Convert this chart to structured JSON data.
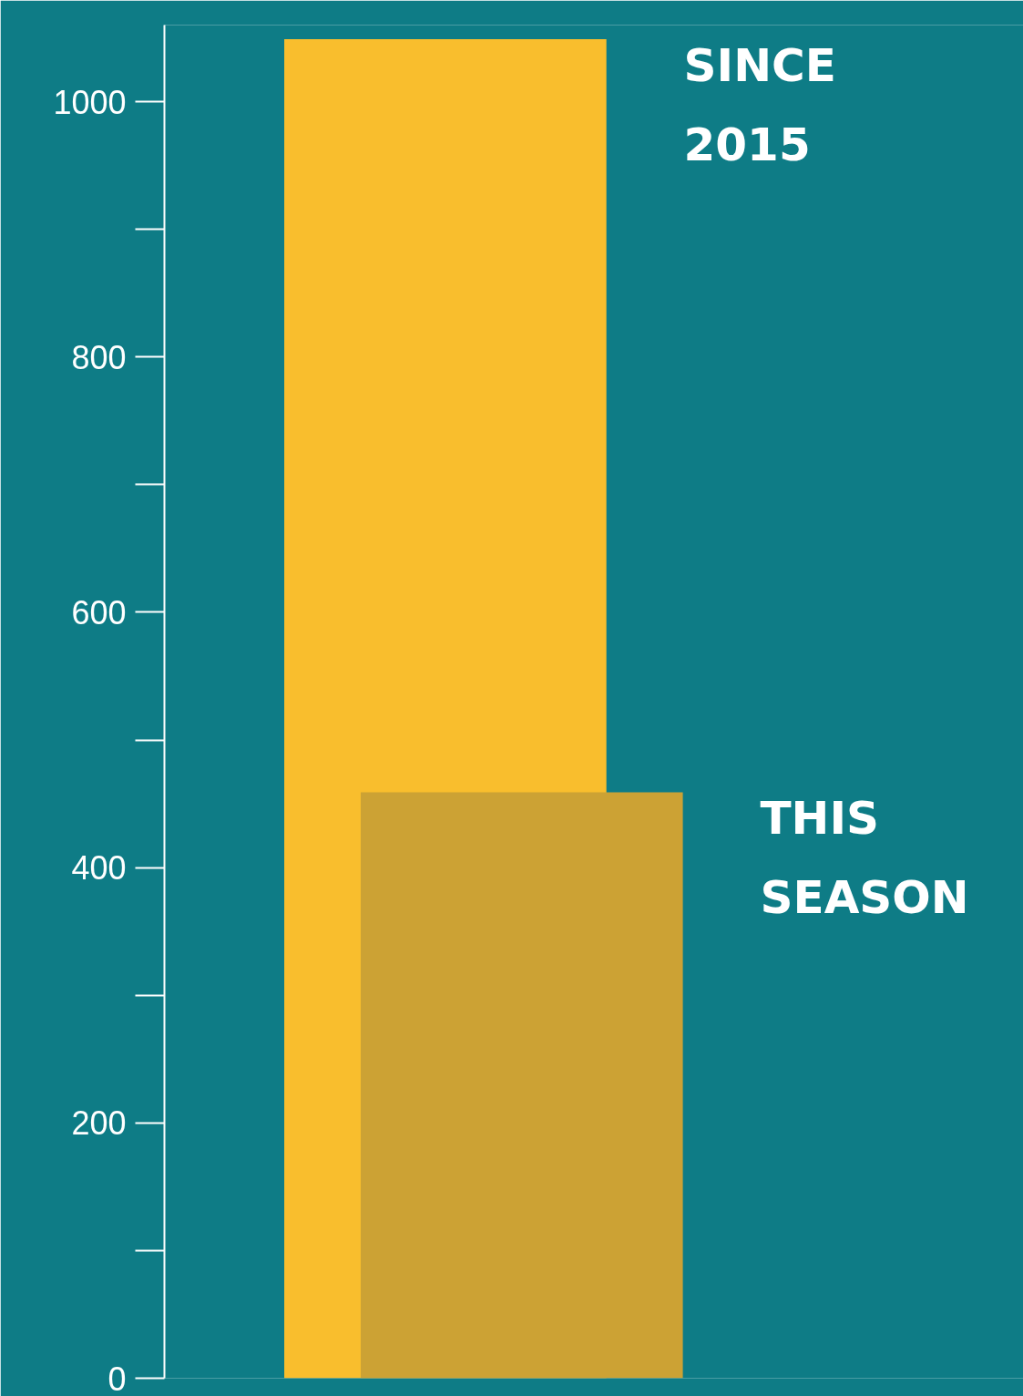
{
  "chart_data": {
    "type": "bar",
    "categories": [
      null
    ],
    "series": [
      {
        "name": "SINCE 2015",
        "color": "#f9be2d",
        "values": [
          1049
        ]
      },
      {
        "name": "THIS SEASON",
        "color": "#cca234",
        "values": [
          459
        ]
      }
    ],
    "ylim": [
      0,
      1060
    ],
    "yticks": [
      0,
      200,
      400,
      600,
      800,
      1000
    ],
    "grid": false
  }
}
